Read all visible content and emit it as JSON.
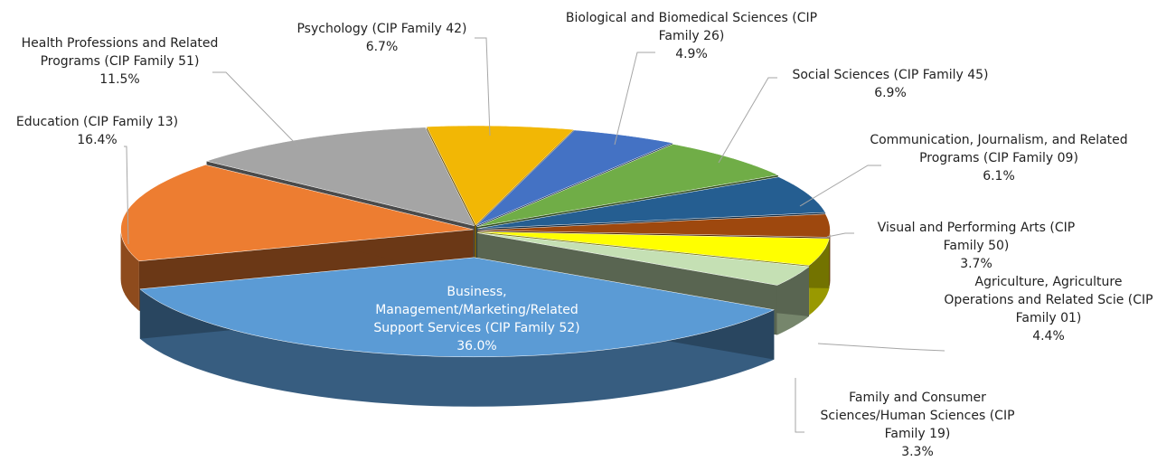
{
  "chart_data": {
    "type": "pie3d",
    "categories": [
      "Psychology (CIP Family 42)",
      "Biological and Biomedical Sciences (CIP Family 26)",
      "Social Sciences (CIP Family 45)",
      "Communication, Journalism, and Related Programs (CIP Family 09)",
      "Visual and Performing Arts (CIP Family 50)",
      "Agriculture, Agriculture Operations and Related Scie (CIP Family 01)",
      "Family and Consumer Sciences/Human Sciences (CIP Family 19)",
      "Business, Management/Marketing/Related Support Services (CIP Family 52)",
      "Education (CIP Family 13)",
      "Health Professions and Related Programs (CIP Family 51)"
    ],
    "values": [
      6.7,
      4.9,
      6.9,
      6.1,
      3.7,
      4.4,
      3.3,
      36.0,
      16.4,
      11.5
    ],
    "value_labels": [
      "6.7%",
      "4.9%",
      "6.9%",
      "6.1%",
      "3.7%",
      "4.4%",
      "3.3%",
      "36.0%",
      "16.4%",
      "11.5%"
    ],
    "colors": [
      "#f2b705",
      "#4472c4",
      "#70ad47",
      "#255e91",
      "#9e480e",
      "#ffff00",
      "#c5e0b4",
      "#5b9bd5",
      "#ed7d31",
      "#a5a5a5"
    ]
  }
}
